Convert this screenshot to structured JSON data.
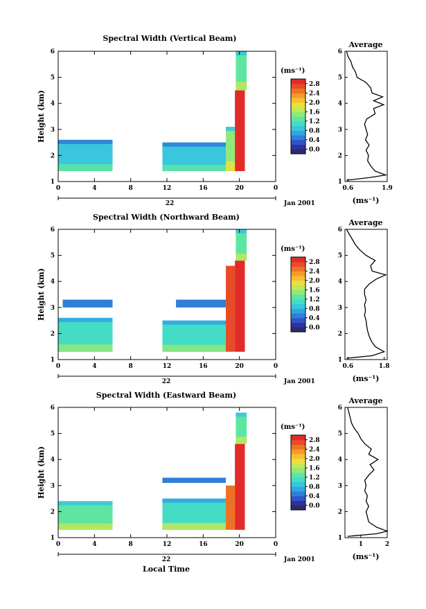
{
  "colors": {
    "scale": [
      "#2b2b6b",
      "#3030a0",
      "#2f55c8",
      "#2f7fd8",
      "#32a6e2",
      "#3ac6dc",
      "#44dcc4",
      "#5de6a2",
      "#8fe87a",
      "#c0e858",
      "#e8e040",
      "#f6c030",
      "#f59a28",
      "#ef7126",
      "#e84b28",
      "#e02c28"
    ]
  },
  "chart_data": [
    {
      "type": "heatmap",
      "title": "Spectral Width (Vertical Beam)",
      "ylabel": "Height (km)",
      "xlabel": "",
      "ylim": [
        1,
        6
      ],
      "xlim": [
        0,
        24
      ],
      "xticks": [
        "0",
        "4",
        "8",
        "12",
        "16",
        "20",
        "0"
      ],
      "yticks": [
        "1",
        "2",
        "3",
        "4",
        "5",
        "6"
      ],
      "day_label": "22",
      "date_label": "Jan 2001",
      "colorbar": {
        "unit": "(ms⁻¹)",
        "range": [
          -0.2,
          3.0
        ],
        "labels": [
          "0.0",
          "0.4",
          "0.8",
          "1.2",
          "1.6",
          "2.0",
          "2.4",
          "2.8"
        ]
      },
      "blocks": [
        {
          "t": [
            0,
            6
          ],
          "h": [
            1.4,
            2.6
          ],
          "level": 1.0
        },
        {
          "t": [
            11.5,
            18.5
          ],
          "h": [
            1.4,
            2.5
          ],
          "level": 0.9
        },
        {
          "t": [
            18.5,
            19.5
          ],
          "h": [
            1.4,
            3.1
          ],
          "level": 1.5
        },
        {
          "t": [
            19.5,
            20.6
          ],
          "h": [
            1.4,
            4.5
          ],
          "level": 3.0
        },
        {
          "t": [
            19.6,
            20.8
          ],
          "h": [
            4.5,
            6.0
          ],
          "level": 1.4
        }
      ],
      "profile": {
        "title": "Average",
        "xlabel": "(ms⁻¹)",
        "xlim": [
          0.5,
          1.9
        ],
        "xticks": [
          "0.6",
          "1.9"
        ],
        "h": [
          1.05,
          1.15,
          1.25,
          1.4,
          1.6,
          1.8,
          2.0,
          2.2,
          2.4,
          2.6,
          2.8,
          3.0,
          3.2,
          3.4,
          3.6,
          3.8,
          3.95,
          4.1,
          4.25,
          4.4,
          4.6,
          4.8,
          5.0,
          5.2,
          5.4,
          5.6,
          5.8,
          6.0
        ],
        "w": [
          0.55,
          1.3,
          1.85,
          1.5,
          1.35,
          1.25,
          1.28,
          1.2,
          1.3,
          1.18,
          1.25,
          1.2,
          1.15,
          1.22,
          1.5,
          1.45,
          1.78,
          1.45,
          1.75,
          1.4,
          1.35,
          1.2,
          0.9,
          0.85,
          0.75,
          0.7,
          0.6,
          0.55
        ]
      }
    },
    {
      "type": "heatmap",
      "title": "Spectral Width (Northward Beam)",
      "ylabel": "Height (km)",
      "xlabel": "",
      "ylim": [
        1,
        6
      ],
      "xlim": [
        0,
        24
      ],
      "xticks": [
        "0",
        "4",
        "8",
        "12",
        "16",
        "20",
        "0"
      ],
      "yticks": [
        "1",
        "2",
        "3",
        "4",
        "5",
        "6"
      ],
      "day_label": "22",
      "date_label": "Jan 2001",
      "colorbar": {
        "unit": "(ms⁻¹)",
        "range": [
          -0.2,
          3.0
        ],
        "labels": [
          "0.0",
          "0.4",
          "0.8",
          "1.2",
          "1.6",
          "2.0",
          "2.4",
          "2.8"
        ]
      },
      "blocks": [
        {
          "t": [
            0,
            6
          ],
          "h": [
            1.3,
            2.6
          ],
          "level": 1.1
        },
        {
          "t": [
            0.5,
            6
          ],
          "h": [
            3.0,
            3.3
          ],
          "level": 0.4
        },
        {
          "t": [
            11.5,
            18.5
          ],
          "h": [
            1.3,
            2.5
          ],
          "level": 1.1
        },
        {
          "t": [
            13,
            18.5
          ],
          "h": [
            3.0,
            3.3
          ],
          "level": 0.5
        },
        {
          "t": [
            18.5,
            19.5
          ],
          "h": [
            1.3,
            4.6
          ],
          "level": 2.6
        },
        {
          "t": [
            19.5,
            20.6
          ],
          "h": [
            1.3,
            4.8
          ],
          "level": 3.0
        },
        {
          "t": [
            19.6,
            20.8
          ],
          "h": [
            4.8,
            6.0
          ],
          "level": 1.4
        }
      ],
      "profile": {
        "title": "Average",
        "xlabel": "(ms⁻¹)",
        "xlim": [
          0.5,
          1.9
        ],
        "xticks": [
          "0.6",
          "1.8"
        ],
        "h": [
          1.05,
          1.15,
          1.3,
          1.5,
          1.7,
          1.9,
          2.1,
          2.3,
          2.5,
          2.7,
          2.9,
          3.1,
          3.3,
          3.5,
          3.7,
          3.9,
          4.1,
          4.25,
          4.4,
          4.6,
          4.8,
          5.0,
          5.2,
          5.4,
          5.6,
          5.8,
          6.0
        ],
        "w": [
          0.55,
          1.4,
          1.8,
          1.5,
          1.38,
          1.3,
          1.25,
          1.22,
          1.2,
          1.15,
          1.18,
          1.15,
          1.2,
          1.15,
          1.15,
          1.3,
          1.55,
          1.85,
          1.4,
          1.35,
          1.5,
          1.2,
          1.0,
          0.85,
          0.75,
          0.65,
          0.55
        ]
      }
    },
    {
      "type": "heatmap",
      "title": "Spectral Width (Eastward Beam)",
      "ylabel": "Height (km)",
      "xlabel": "Local Time",
      "ylim": [
        1,
        6
      ],
      "xlim": [
        0,
        24
      ],
      "xticks": [
        "0",
        "4",
        "8",
        "12",
        "16",
        "20",
        "0"
      ],
      "yticks": [
        "1",
        "2",
        "3",
        "4",
        "5",
        "6"
      ],
      "day_label": "22",
      "date_label": "Jan 2001",
      "colorbar": {
        "unit": "(ms⁻¹)",
        "range": [
          -0.2,
          3.0
        ],
        "labels": [
          "0.0",
          "0.4",
          "0.8",
          "1.2",
          "1.6",
          "2.0",
          "2.4",
          "2.8"
        ]
      },
      "blocks": [
        {
          "t": [
            0,
            6
          ],
          "h": [
            1.3,
            2.4
          ],
          "level": 1.3
        },
        {
          "t": [
            11.5,
            18.5
          ],
          "h": [
            1.3,
            2.5
          ],
          "level": 1.2
        },
        {
          "t": [
            11.5,
            18.5
          ],
          "h": [
            3.1,
            3.3
          ],
          "level": 0.4
        },
        {
          "t": [
            18.5,
            19.5
          ],
          "h": [
            1.3,
            3.0
          ],
          "level": 2.4
        },
        {
          "t": [
            19.5,
            20.6
          ],
          "h": [
            1.3,
            4.6
          ],
          "level": 3.0
        },
        {
          "t": [
            19.6,
            20.8
          ],
          "h": [
            4.6,
            5.8
          ],
          "level": 1.3
        }
      ],
      "profile": {
        "title": "Average",
        "xlabel": "(ms⁻¹)",
        "xlim": [
          0.4,
          2.0
        ],
        "xticks": [
          "1",
          "2"
        ],
        "xtick_values": [
          1,
          2
        ],
        "h": [
          1.05,
          1.15,
          1.25,
          1.4,
          1.6,
          1.8,
          2.0,
          2.2,
          2.4,
          2.6,
          2.8,
          3.0,
          3.2,
          3.4,
          3.6,
          3.8,
          4.0,
          4.2,
          4.4,
          4.6,
          4.8,
          5.0,
          5.2,
          5.4,
          5.6,
          5.8,
          6.0
        ],
        "w": [
          0.5,
          1.6,
          2.0,
          1.6,
          1.3,
          1.25,
          1.2,
          1.3,
          1.2,
          1.25,
          1.15,
          1.2,
          1.15,
          1.3,
          1.5,
          1.35,
          1.65,
          1.3,
          1.4,
          1.15,
          1.0,
          0.9,
          0.75,
          0.65,
          0.6,
          0.55,
          0.5
        ]
      }
    }
  ]
}
